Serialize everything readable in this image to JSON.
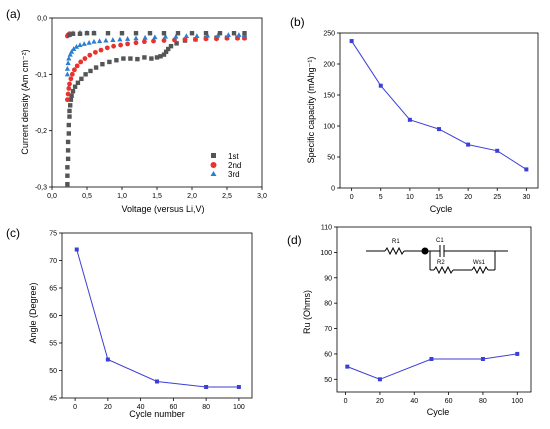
{
  "chart_data": [
    {
      "panel_label": "(a)",
      "type": "scatter",
      "xlabel": "Voltage (versus Li,V)",
      "ylabel": "Current density (Am cm⁻²)",
      "xlim": [
        0.0,
        3.0
      ],
      "ylim": [
        -0.3,
        0.0
      ],
      "xticks": [
        "0,0",
        "0,5",
        "1,0",
        "1,5",
        "2,0",
        "2,5",
        "3,0"
      ],
      "yticks": [
        "0,0",
        "-0,1",
        "-0,2",
        "-0,3"
      ],
      "legend": "bottom-right",
      "series": [
        {
          "name": "1st",
          "color": "#555555",
          "marker": "square",
          "x": [
            0.22,
            0.22,
            0.22,
            0.23,
            0.23,
            0.23,
            0.24,
            0.24,
            0.25,
            0.25,
            0.26,
            0.27,
            0.28,
            0.3,
            0.33,
            0.37,
            0.42,
            0.48,
            0.55,
            0.63,
            0.72,
            0.82,
            0.92,
            1.02,
            1.12,
            1.22,
            1.32,
            1.42,
            1.5,
            1.55,
            1.6,
            1.63,
            1.66,
            1.7,
            1.78,
            1.9,
            2.05,
            2.2,
            2.35,
            2.5,
            2.65,
            2.75
          ],
          "y": [
            -0.295,
            -0.28,
            -0.265,
            -0.25,
            -0.235,
            -0.22,
            -0.205,
            -0.19,
            -0.175,
            -0.165,
            -0.155,
            -0.145,
            -0.138,
            -0.13,
            -0.122,
            -0.115,
            -0.108,
            -0.1,
            -0.094,
            -0.088,
            -0.082,
            -0.078,
            -0.075,
            -0.072,
            -0.072,
            -0.073,
            -0.07,
            -0.072,
            -0.07,
            -0.068,
            -0.065,
            -0.06,
            -0.055,
            -0.05,
            -0.045,
            -0.04,
            -0.038,
            -0.036,
            -0.035,
            -0.035,
            -0.035,
            -0.035
          ]
        },
        {
          "name": "2nd",
          "color": "#e8322e",
          "marker": "circle",
          "x": [
            0.22,
            0.23,
            0.24,
            0.25,
            0.27,
            0.29,
            0.32,
            0.36,
            0.41,
            0.47,
            0.54,
            0.62,
            0.7,
            0.79,
            0.88,
            0.98,
            1.08,
            1.2,
            1.32,
            1.45,
            1.6,
            1.75,
            1.9,
            2.05,
            2.2,
            2.35,
            2.5,
            2.65,
            2.75,
            0.22,
            0.23,
            0.25
          ],
          "y": [
            -0.145,
            -0.135,
            -0.125,
            -0.117,
            -0.108,
            -0.1,
            -0.092,
            -0.085,
            -0.078,
            -0.072,
            -0.066,
            -0.061,
            -0.057,
            -0.053,
            -0.05,
            -0.048,
            -0.046,
            -0.044,
            -0.042,
            -0.041,
            -0.04,
            -0.039,
            -0.038,
            -0.038,
            -0.037,
            -0.037,
            -0.036,
            -0.036,
            -0.036,
            -0.032,
            -0.03,
            -0.028
          ]
        },
        {
          "name": "3rd",
          "color": "#2b7fd0",
          "marker": "triangle",
          "x": [
            0.22,
            0.22,
            0.23,
            0.24,
            0.26,
            0.28,
            0.31,
            0.35,
            0.4,
            0.46,
            0.53,
            0.6,
            0.68,
            0.77,
            0.87,
            0.97,
            1.08,
            1.2,
            1.33,
            1.47,
            1.62,
            1.77,
            1.92,
            2.07,
            2.22,
            2.37,
            2.52,
            2.67,
            2.75,
            0.25,
            0.3,
            0.4,
            0.5,
            0.6
          ],
          "y": [
            -0.1,
            -0.09,
            -0.08,
            -0.072,
            -0.065,
            -0.06,
            -0.055,
            -0.051,
            -0.048,
            -0.046,
            -0.044,
            -0.042,
            -0.041,
            -0.04,
            -0.039,
            -0.038,
            -0.037,
            -0.036,
            -0.035,
            -0.034,
            -0.033,
            -0.033,
            -0.032,
            -0.032,
            -0.031,
            -0.031,
            -0.03,
            -0.03,
            -0.03,
            -0.028,
            -0.027,
            -0.026,
            -0.026,
            -0.026
          ]
        },
        {
          "name": "",
          "color": "#555555",
          "marker": "square",
          "x": [
            0.25,
            0.3,
            0.4,
            0.5,
            0.6,
            0.8,
            1.0,
            1.2,
            1.4,
            1.6,
            1.8,
            2.0,
            2.2,
            2.4,
            2.6,
            2.75
          ],
          "y": [
            -0.03,
            -0.028,
            -0.028,
            -0.027,
            -0.027,
            -0.027,
            -0.027,
            -0.027,
            -0.027,
            -0.027,
            -0.027,
            -0.027,
            -0.027,
            -0.027,
            -0.027,
            -0.027
          ]
        }
      ]
    },
    {
      "panel_label": "(b)",
      "type": "line",
      "xlabel": "Cycle",
      "ylabel": "Specific capacity (mAhg⁻¹)",
      "xlim": [
        -2,
        32
      ],
      "ylim": [
        0,
        250
      ],
      "xticks": [
        "0",
        "5",
        "10",
        "15",
        "20",
        "25",
        "30"
      ],
      "yticks": [
        "0",
        "50",
        "100",
        "150",
        "200",
        "250"
      ],
      "color": "#3b3fd6",
      "x": [
        0,
        5,
        10,
        15,
        20,
        25,
        30
      ],
      "y": [
        237,
        165,
        110,
        95,
        70,
        60,
        30
      ]
    },
    {
      "panel_label": "(c)",
      "type": "line",
      "xlabel": "Cycle number",
      "ylabel": "Angle (Degree)",
      "xlim": [
        -8,
        108
      ],
      "ylim": [
        45,
        75
      ],
      "xticks": [
        "0",
        "20",
        "40",
        "60",
        "80",
        "100"
      ],
      "yticks": [
        "45",
        "50",
        "55",
        "60",
        "65",
        "70",
        "75"
      ],
      "color": "#3b3fd6",
      "x": [
        1,
        20,
        50,
        80,
        100
      ],
      "y": [
        72,
        52,
        48,
        47,
        47
      ]
    },
    {
      "panel_label": "(d)",
      "type": "line",
      "xlabel": "Cycle",
      "ylabel": "Ru (Ohms)",
      "xlim": [
        -5,
        108
      ],
      "ylim": [
        45,
        110
      ],
      "xticks": [
        "0",
        "20",
        "40",
        "60",
        "80",
        "100"
      ],
      "yticks": [
        "50",
        "60",
        "70",
        "80",
        "90",
        "100",
        "110"
      ],
      "color": "#3b3fd6",
      "x": [
        1,
        20,
        50,
        80,
        100
      ],
      "y": [
        55,
        50,
        58,
        58,
        60
      ],
      "inset_labels": [
        "R1",
        "C1",
        "R2",
        "Ws1"
      ]
    }
  ]
}
